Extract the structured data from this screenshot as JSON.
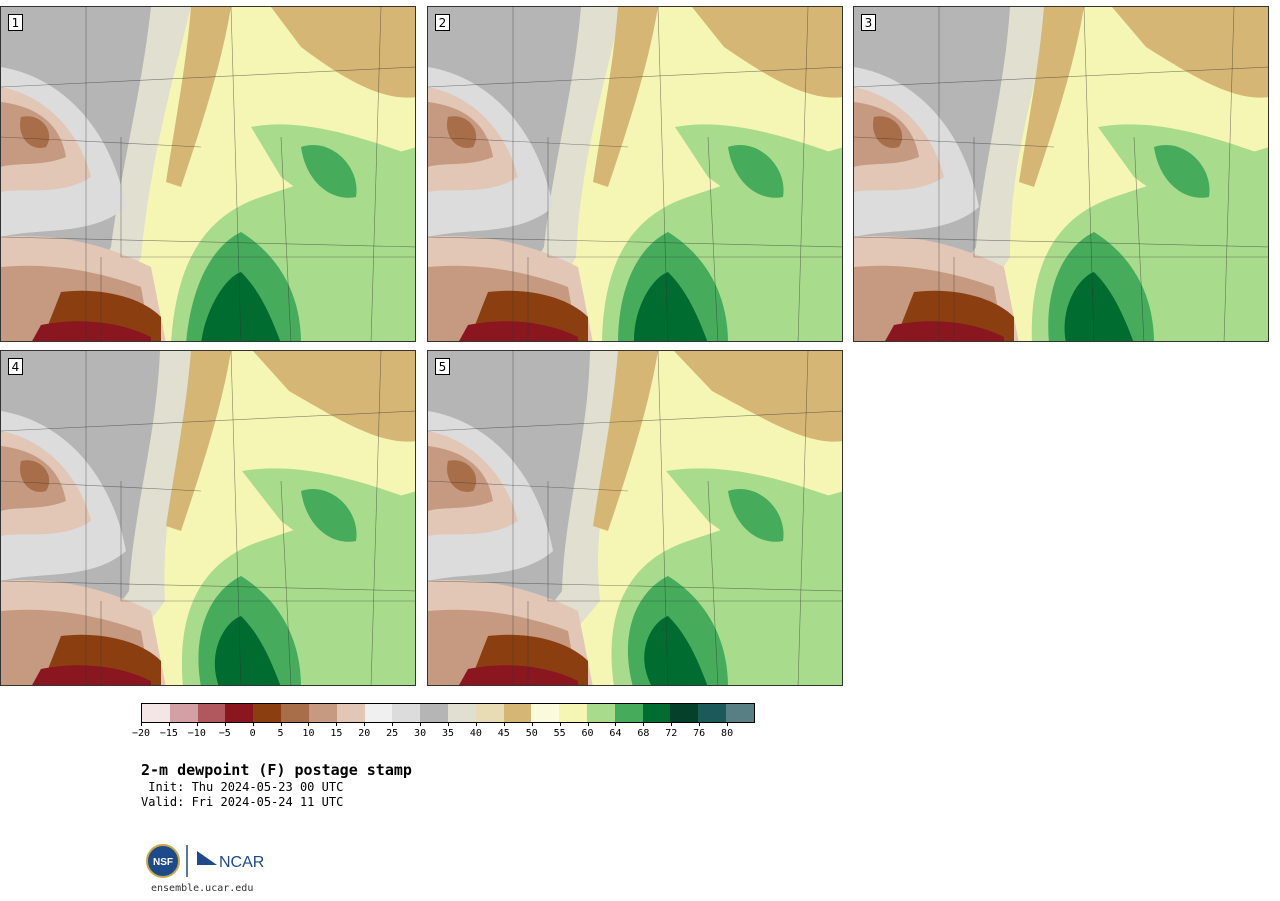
{
  "panels": [
    {
      "label": "1"
    },
    {
      "label": "2"
    },
    {
      "label": "3"
    },
    {
      "label": "4"
    },
    {
      "label": "5"
    }
  ],
  "colorbar": {
    "colors": [
      "#f4e6e6",
      "#d3a0a6",
      "#b0585e",
      "#8a1620",
      "#8b3f10",
      "#a86e4a",
      "#c59a80",
      "#e2c6b6",
      "#f0f0f0",
      "#dcdcdc",
      "#b5b5b5",
      "#e0dfd0",
      "#e8dcb4",
      "#d6b674",
      "#fcfadc",
      "#f6f6b4",
      "#a8dc8c",
      "#46ac5c",
      "#006c30",
      "#04402a",
      "#1b5a58",
      "#588084"
    ],
    "tick_labels": [
      "-20",
      "-15",
      "-10",
      "-5",
      "0",
      "5",
      "10",
      "15",
      "20",
      "25",
      "30",
      "35",
      "40",
      "45",
      "50",
      "55",
      "60",
      "64",
      "68",
      "72",
      "76",
      "80"
    ]
  },
  "title": "2-m dewpoint (F) postage stamp",
  "init": " Init: Thu 2024-05-23 00 UTC",
  "valid": "Valid: Fri 2024-05-24 11 UTC",
  "logo": {
    "nsf": "NSF",
    "ncar": "NCAR"
  },
  "site": "ensemble.ucar.edu"
}
